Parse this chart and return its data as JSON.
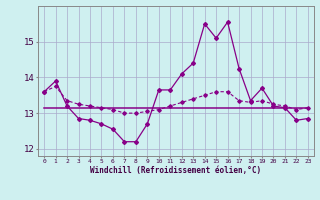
{
  "xlabel": "Windchill (Refroidissement éolien,°C)",
  "background_color": "#cff0f0",
  "grid_color": "#aaaacc",
  "line_color": "#880088",
  "x": [
    0,
    1,
    2,
    3,
    4,
    5,
    6,
    7,
    8,
    9,
    10,
    11,
    12,
    13,
    14,
    15,
    16,
    17,
    18,
    19,
    20,
    21,
    22,
    23
  ],
  "y_main": [
    13.6,
    13.9,
    13.2,
    12.85,
    12.8,
    12.7,
    12.55,
    12.2,
    12.2,
    12.7,
    13.65,
    13.65,
    14.1,
    14.4,
    15.5,
    15.1,
    15.55,
    14.25,
    13.35,
    13.7,
    13.2,
    13.15,
    12.8,
    12.85
  ],
  "y_avg": [
    13.15,
    13.15,
    13.15,
    13.15,
    13.15,
    13.15,
    13.15,
    13.15,
    13.15,
    13.15,
    13.15,
    13.15,
    13.15,
    13.15,
    13.15,
    13.15,
    13.15,
    13.15,
    13.15,
    13.15,
    13.15,
    13.15,
    13.15,
    13.15
  ],
  "y_trend": [
    13.6,
    13.75,
    13.35,
    13.25,
    13.2,
    13.15,
    13.1,
    13.0,
    13.0,
    13.05,
    13.1,
    13.2,
    13.3,
    13.4,
    13.5,
    13.6,
    13.6,
    13.35,
    13.3,
    13.35,
    13.25,
    13.2,
    13.1,
    13.15
  ],
  "ylim": [
    11.8,
    16.0
  ],
  "yticks": [
    12,
    13,
    14,
    15
  ],
  "xticks": [
    0,
    1,
    2,
    3,
    4,
    5,
    6,
    7,
    8,
    9,
    10,
    11,
    12,
    13,
    14,
    15,
    16,
    17,
    18,
    19,
    20,
    21,
    22,
    23
  ]
}
